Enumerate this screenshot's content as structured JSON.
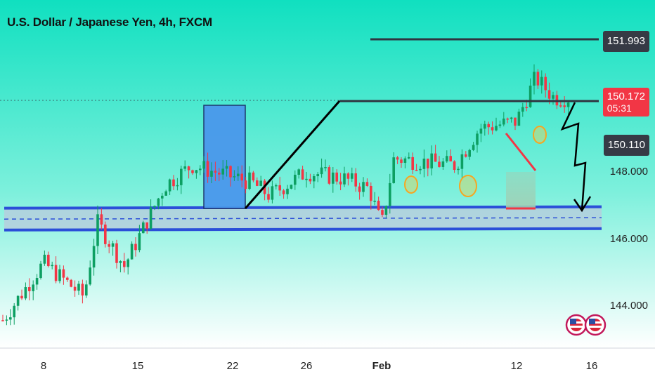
{
  "title": "U.S. Dollar / Japanese Yen, 4h, FXCM",
  "colors": {
    "bg_top": "#10e0c0",
    "bg_bottom": "#ffffff",
    "up": "#0d9f62",
    "down": "#f23645",
    "zone_box": "#4a98ec",
    "support_band": "#2b4fd8",
    "level_line": "#2f3440"
  },
  "price_tags": {
    "level_high": "151.993",
    "current": "150.172",
    "countdown": "05:31",
    "level_mid": "150.110"
  },
  "chart_data": {
    "type": "candlestick",
    "symbol": "U.S. Dollar / Japanese Yen",
    "interval": "4h",
    "source": "FXCM",
    "x_tick_labels": [
      "8",
      "15",
      "22",
      "26",
      "Feb",
      "12",
      "16"
    ],
    "y_tick_labels": [
      "148.000",
      "146.000",
      "144.000"
    ],
    "ylim": [
      143.3,
      152.6
    ],
    "levels": [
      151.993,
      150.172,
      150.11
    ],
    "support_band": [
      146.4,
      146.8
    ],
    "approx_close_path": [
      {
        "t": "Jan 5",
        "price": 143.6
      },
      {
        "t": "Jan 8",
        "price": 145.3
      },
      {
        "t": "Jan 11",
        "price": 144.3
      },
      {
        "t": "Jan 12",
        "price": 146.5
      },
      {
        "t": "Jan 14",
        "price": 145.2
      },
      {
        "t": "Jan 17",
        "price": 147.6
      },
      {
        "t": "Jan 19",
        "price": 148.2
      },
      {
        "t": "Jan 23",
        "price": 147.7
      },
      {
        "t": "Jan 24",
        "price": 147.3
      },
      {
        "t": "Jan 26",
        "price": 148.0
      },
      {
        "t": "Jan 29",
        "price": 147.8
      },
      {
        "t": "Jan 31",
        "price": 147.5
      },
      {
        "t": "Feb 1",
        "price": 146.4
      },
      {
        "t": "Feb 2",
        "price": 148.4
      },
      {
        "t": "Feb 7",
        "price": 148.2
      },
      {
        "t": "Feb 9",
        "price": 149.3
      },
      {
        "t": "Feb 12",
        "price": 149.5
      },
      {
        "t": "Feb 13",
        "price": 150.8
      },
      {
        "t": "Feb 14",
        "price": 150.2
      }
    ]
  }
}
